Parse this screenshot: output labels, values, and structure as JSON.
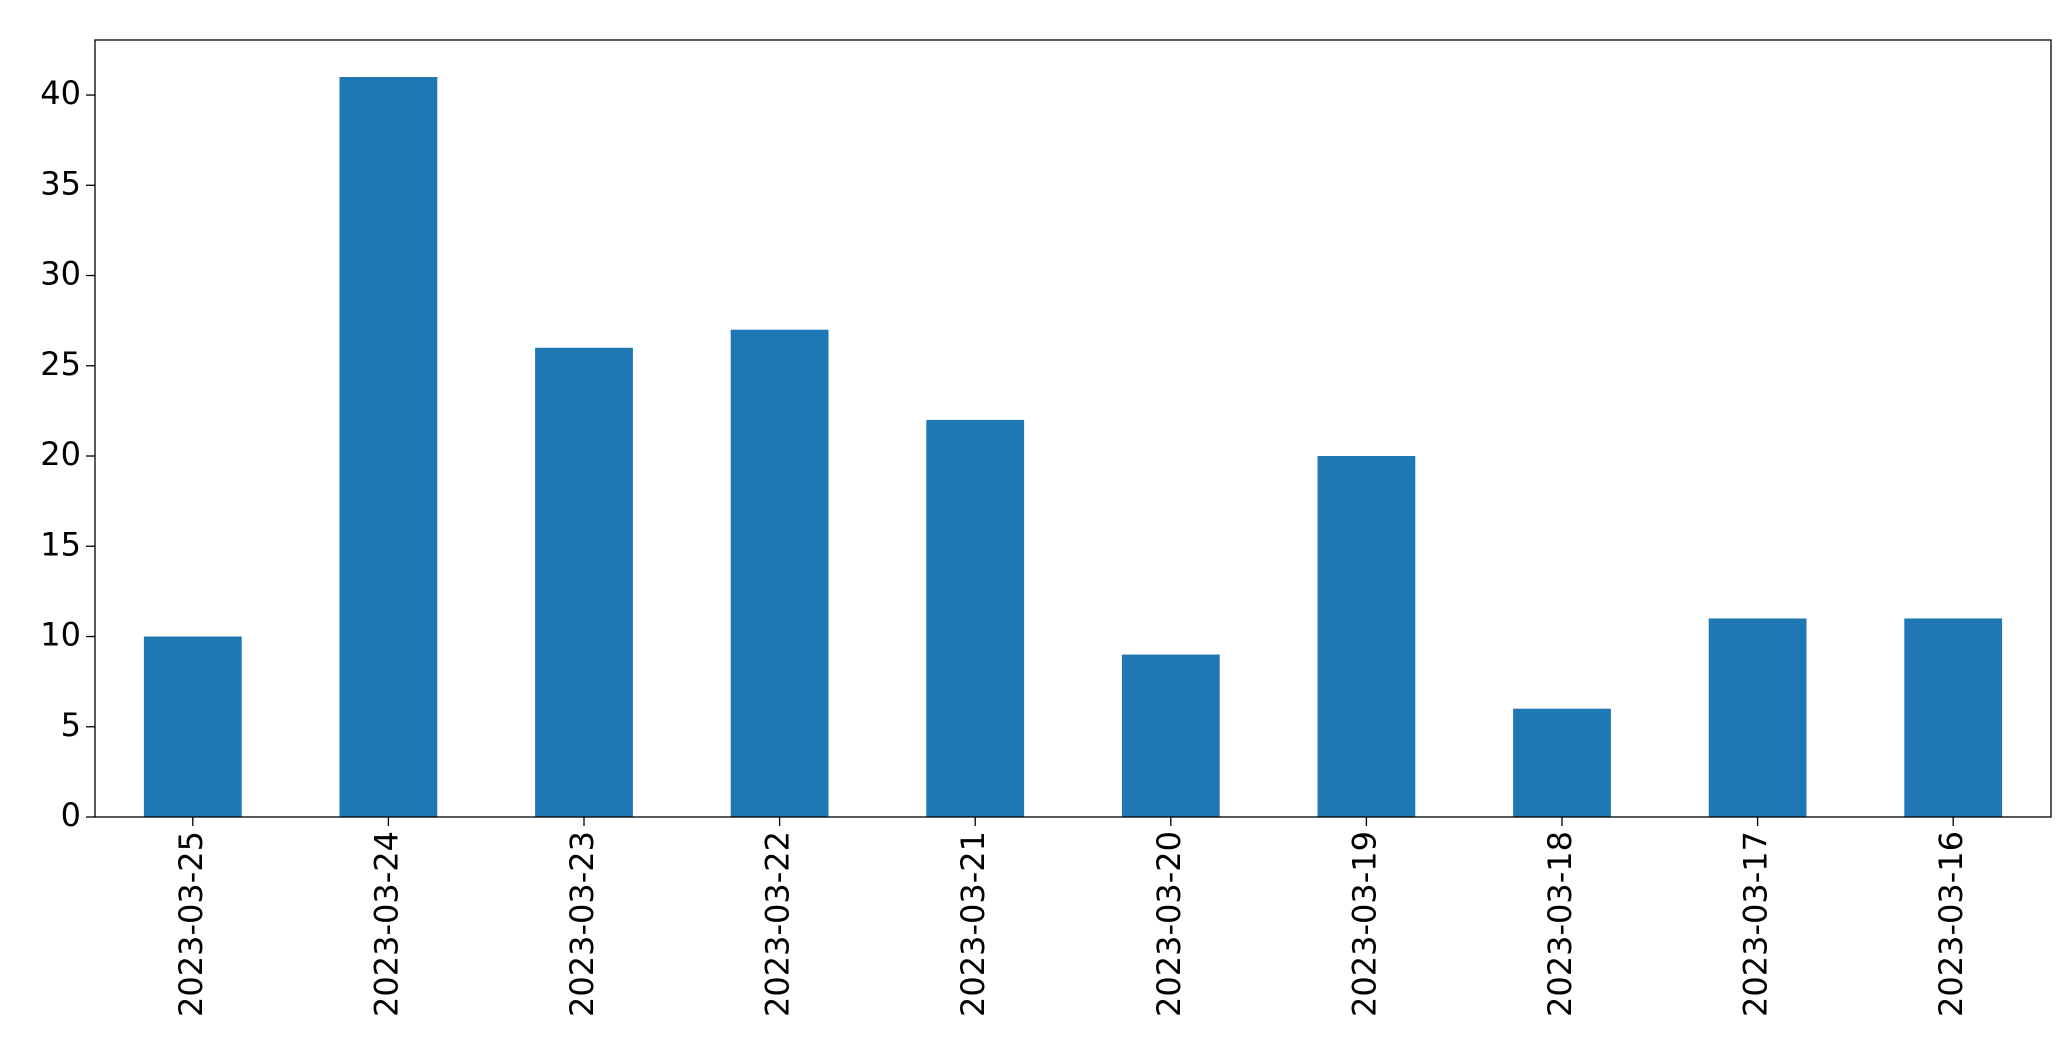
{
  "chart_data": {
    "type": "bar",
    "categories": [
      "2023-03-25",
      "2023-03-24",
      "2023-03-23",
      "2023-03-22",
      "2023-03-21",
      "2023-03-20",
      "2023-03-19",
      "2023-03-18",
      "2023-03-17",
      "2023-03-16"
    ],
    "values": [
      10,
      41,
      26,
      27,
      22,
      9,
      20,
      6,
      11,
      11
    ],
    "color": "#1f77b4",
    "ylim": [
      0,
      43.05
    ],
    "yticks": [
      0,
      5,
      10,
      15,
      20,
      25,
      30,
      35,
      40
    ],
    "grid": false
  }
}
